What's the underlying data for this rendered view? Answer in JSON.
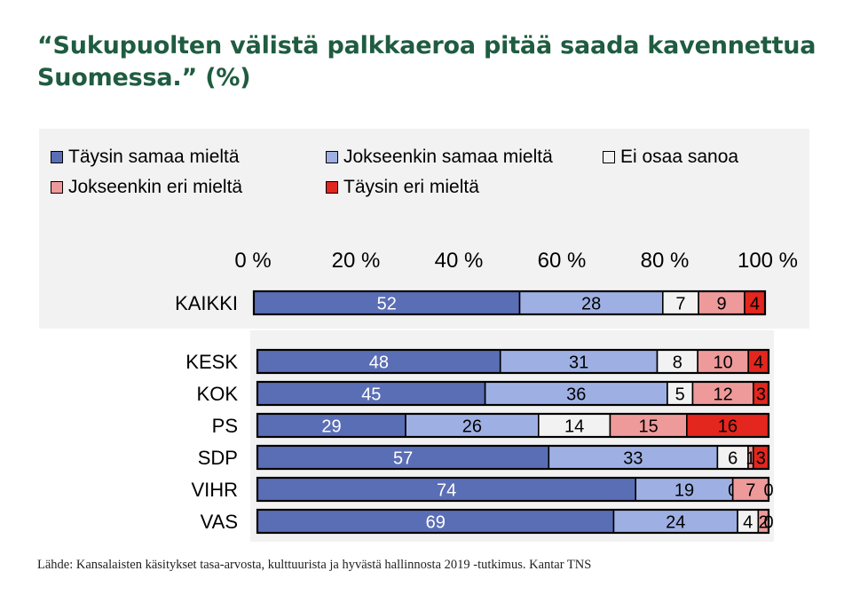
{
  "title": "“Sukupuolten välistä palkkaeroa pitää saada kavennettua Suomessa.” (%)",
  "source": "Lähde: Kansalaisten käsitykset tasa-arvosta, kulttuurista ja hyvästä hallinnosta 2019 -tutkimus. Kantar TNS",
  "legend": [
    {
      "label": "Täysin samaa mieltä",
      "color": "#5a6eb6"
    },
    {
      "label": "Jokseenkin samaa mieltä",
      "color": "#9eb0e3"
    },
    {
      "label": "Ei osaa sanoa",
      "color": "#f2f2f2"
    },
    {
      "label": "Jokseenkin eri mieltä",
      "color": "#ef9a9a"
    },
    {
      "label": "Täysin eri mieltä",
      "color": "#e3261e"
    }
  ],
  "chart_data": {
    "type": "bar",
    "orientation": "horizontal",
    "stacked": true,
    "xlim": [
      0,
      100
    ],
    "ticks": [
      "0 %",
      "20 %",
      "40 %",
      "60 %",
      "80 %",
      "100 %"
    ],
    "axis_position": "top",
    "legend_position": "top",
    "categories": [
      "KAIKKI",
      "KESK",
      "KOK",
      "PS",
      "SDP",
      "VIHR",
      "VAS"
    ],
    "series": [
      {
        "name": "Täysin samaa mieltä",
        "color": "#5a6eb6",
        "label_color": "#ffffff",
        "values": [
          52,
          48,
          45,
          29,
          57,
          74,
          69
        ]
      },
      {
        "name": "Jokseenkin samaa mieltä",
        "color": "#9eb0e3",
        "label_color": "#000000",
        "values": [
          28,
          31,
          36,
          26,
          33,
          19,
          24
        ]
      },
      {
        "name": "Ei osaa sanoa",
        "color": "#f2f2f2",
        "label_color": "#000000",
        "values": [
          7,
          8,
          5,
          14,
          6,
          0,
          4
        ]
      },
      {
        "name": "Jokseenkin eri mieltä",
        "color": "#ef9a9a",
        "label_color": "#000000",
        "values": [
          9,
          10,
          12,
          15,
          1,
          7,
          2
        ]
      },
      {
        "name": "Täysin eri mieltä",
        "color": "#e3261e",
        "label_color": "#000000",
        "values": [
          4,
          4,
          3,
          16,
          3,
          0,
          0
        ]
      }
    ]
  }
}
